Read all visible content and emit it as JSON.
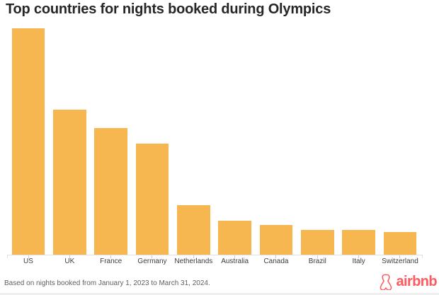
{
  "page": {
    "title": "Top countries for nights booked during Olympics",
    "footnote": "Based on nights booked from January 1, 2023 to March 31, 2024.",
    "brand": {
      "name": "airbnb",
      "icon": "airbnb-belo-icon",
      "color": "#FF5A5F"
    }
  },
  "colors": {
    "background": "#FFFFFF",
    "bar": "#F6B750",
    "axis_line": "#E0E0E0",
    "tick": "#CCCCCC",
    "title_text": "#262626",
    "axis_label_text": "#3D3D3D",
    "footnote_text": "#606060",
    "brand_red": "#FF5A5F"
  },
  "chart_data": {
    "type": "bar",
    "title": "Top countries for nights booked during Olympics",
    "categories": [
      "US",
      "UK",
      "France",
      "Germany",
      "Netherlands",
      "Australia",
      "Canada",
      "Brazil",
      "Italy",
      "Switzerland"
    ],
    "values": [
      100,
      64,
      56,
      49,
      22,
      15,
      13,
      11,
      11,
      10
    ],
    "values_unit": "relative nights booked, US = 100 (no numeric y-axis shown in chart)",
    "xlabel": "",
    "ylabel": "",
    "ylim": [
      0,
      100
    ],
    "grid": false,
    "legend": "none",
    "bar_color": "#F6B750"
  }
}
